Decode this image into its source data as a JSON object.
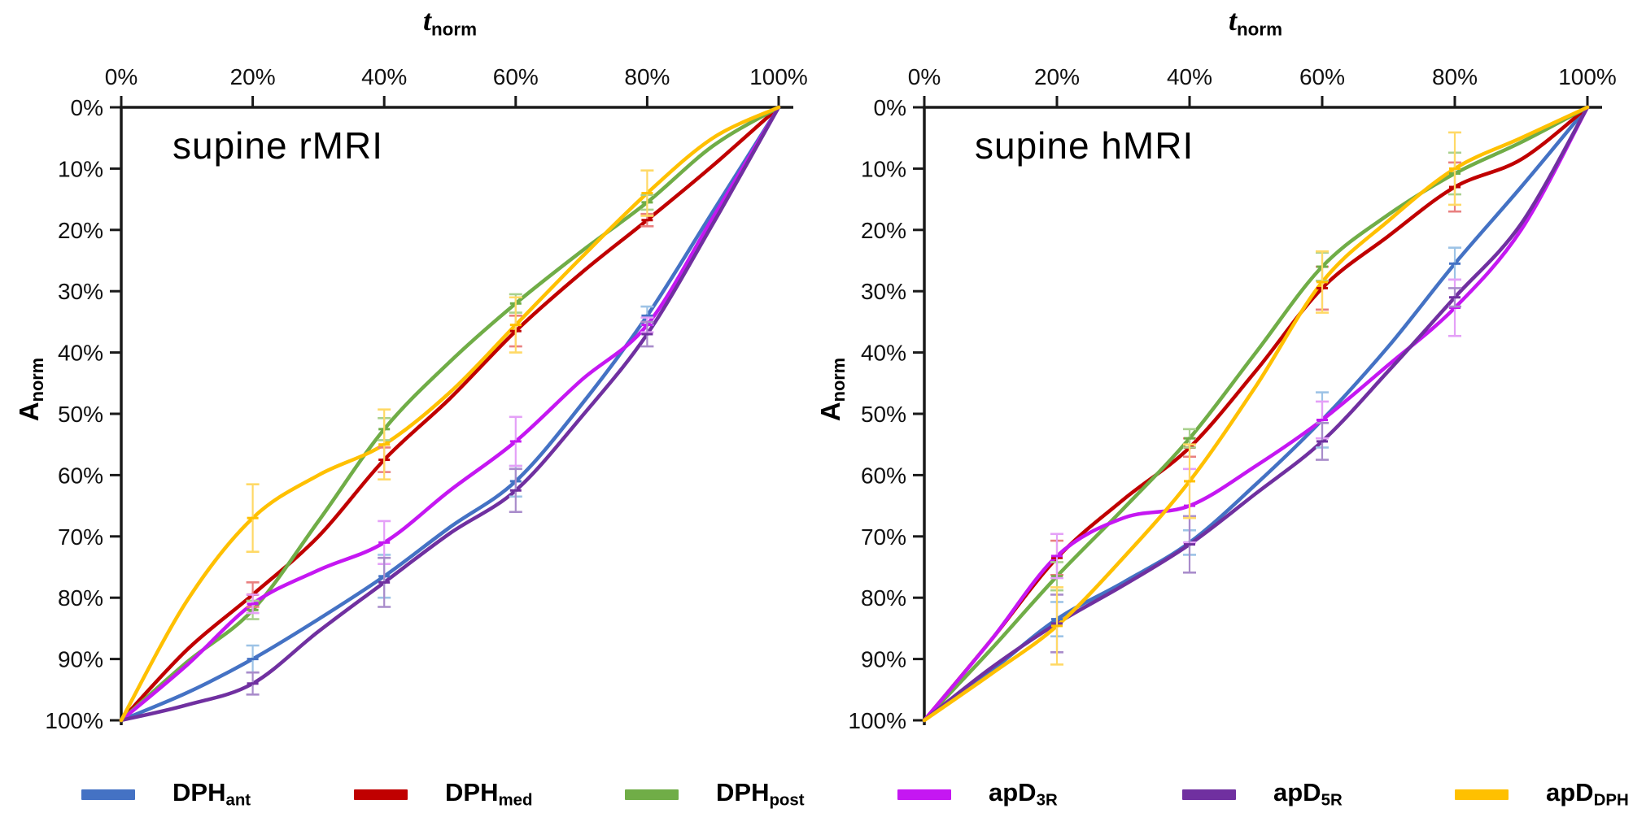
{
  "figure": {
    "legend": {
      "items": [
        {
          "name": "dph-ant",
          "main": "DPH",
          "sub": "ant",
          "color": "#4472C4"
        },
        {
          "name": "dph-med",
          "main": "DPH",
          "sub": "med",
          "color": "#C00000"
        },
        {
          "name": "dph-post",
          "main": "DPH",
          "sub": "post",
          "color": "#70AD47"
        },
        {
          "name": "apd-3r",
          "main": "apD",
          "sub": "3R",
          "color": "#C517F2"
        },
        {
          "name": "apd-5r",
          "main": "apD",
          "sub": "5R",
          "color": "#7030A0"
        },
        {
          "name": "apd-dph",
          "main": "apD",
          "sub": "DPH",
          "color": "#FFC000"
        }
      ]
    },
    "chart_data": [
      {
        "type": "line",
        "title": "supine rMRI",
        "xlabel": {
          "main": "t",
          "sub": "norm"
        },
        "ylabel": {
          "main": "A",
          "sub": "norm"
        },
        "x_ticks": [
          "0%",
          "20%",
          "40%",
          "60%",
          "80%",
          "100%"
        ],
        "y_ticks": [
          "0%",
          "10%",
          "20%",
          "30%",
          "40%",
          "50%",
          "60%",
          "70%",
          "80%",
          "90%",
          "100%"
        ],
        "x": [
          0,
          10,
          20,
          30,
          40,
          50,
          60,
          70,
          80,
          90,
          100
        ],
        "xlim": [
          0,
          100
        ],
        "ylim_top_to_bottom": [
          0,
          100
        ],
        "y_axis_inverted": true,
        "grid": false,
        "series": [
          {
            "name_main": "DPH",
            "name_sub": "ant",
            "color": "#4472C4",
            "err_color": "#9DC3E6",
            "values": [
              100,
              95.5,
              90,
              83.5,
              76.5,
              68.5,
              61,
              48.5,
              34,
              17,
              0
            ],
            "error_t": [
              20,
              40,
              60,
              80
            ],
            "error": [
              2.2,
              3.5,
              2.5,
              1.5
            ]
          },
          {
            "name_main": "DPH",
            "name_sub": "med",
            "color": "#C00000",
            "err_color": "#E98080",
            "values": [
              100,
              88.5,
              79.5,
              70,
              57.5,
              47.5,
              36.5,
              27,
              18.4,
              9.5,
              0
            ],
            "error_t": [
              20,
              40,
              60,
              80
            ],
            "error": [
              2.0,
              2.0,
              2.5,
              1.0
            ]
          },
          {
            "name_main": "DPH",
            "name_sub": "post",
            "color": "#70AD47",
            "err_color": "#A9D18E",
            "values": [
              100,
              90.5,
              82,
              67.5,
              52.5,
              41.5,
              32,
              23.5,
              15.5,
              6.3,
              0
            ],
            "error_t": [
              20,
              40,
              60,
              80
            ],
            "error": [
              1.5,
              1.8,
              1.5,
              1.2
            ]
          },
          {
            "name_main": "apD",
            "name_sub": "3R",
            "color": "#C517F2",
            "err_color": "#E4A0F7",
            "values": [
              100,
              91,
              81,
              75.5,
              71,
              62.5,
              54.5,
              44.5,
              35.5,
              18,
              0
            ],
            "error_t": [
              20,
              40,
              60,
              80
            ],
            "error": [
              1.5,
              3.5,
              4.0,
              1.2
            ]
          },
          {
            "name_main": "apD",
            "name_sub": "5R",
            "color": "#7030A0",
            "err_color": "#A98CCB",
            "values": [
              100,
              97.5,
              94,
              85.5,
              77.5,
              69.5,
              62.5,
              50.5,
              37,
              19,
              0
            ],
            "error_t": [
              20,
              40,
              60,
              80
            ],
            "error": [
              1.8,
              4.0,
              3.5,
              2.0
            ]
          },
          {
            "name_main": "apD",
            "name_sub": "DPH",
            "color": "#FFC000",
            "err_color": "#FFD966",
            "values": [
              100,
              80.5,
              67,
              60,
              55,
              46.5,
              35.5,
              24.5,
              14,
              5,
              0
            ],
            "error_t": [
              20,
              40,
              60,
              80
            ],
            "error": [
              5.5,
              5.7,
              4.5,
              3.7
            ]
          }
        ]
      },
      {
        "type": "line",
        "title": "supine hMRI",
        "xlabel": {
          "main": "t",
          "sub": "norm"
        },
        "ylabel": {
          "main": "A",
          "sub": "norm"
        },
        "x_ticks": [
          "0%",
          "20%",
          "40%",
          "60%",
          "80%",
          "100%"
        ],
        "y_ticks": [
          "0%",
          "10%",
          "20%",
          "30%",
          "40%",
          "50%",
          "60%",
          "70%",
          "80%",
          "90%",
          "100%"
        ],
        "x": [
          0,
          10,
          20,
          30,
          40,
          50,
          60,
          70,
          80,
          90,
          100
        ],
        "xlim": [
          0,
          100
        ],
        "ylim_top_to_bottom": [
          0,
          100
        ],
        "y_axis_inverted": true,
        "grid": false,
        "series": [
          {
            "name_main": "DPH",
            "name_sub": "ant",
            "color": "#4472C4",
            "err_color": "#9DC3E6",
            "values": [
              100,
              92,
              83.5,
              77.5,
              71,
              61.5,
              51,
              39,
              25.5,
              13,
              0
            ],
            "error_t": [
              20,
              40,
              60,
              80
            ],
            "error": [
              2.8,
              2.0,
              4.5,
              2.6
            ]
          },
          {
            "name_main": "DPH",
            "name_sub": "med",
            "color": "#C00000",
            "err_color": "#E98080",
            "values": [
              100,
              87,
              73.5,
              64,
              55.5,
              43,
              29.5,
              21,
              13,
              8.5,
              0
            ],
            "error_t": [
              20,
              40,
              60,
              80
            ],
            "error": [
              2.8,
              1.5,
              3.5,
              4.0
            ]
          },
          {
            "name_main": "DPH",
            "name_sub": "post",
            "color": "#70AD47",
            "err_color": "#A9D18E",
            "values": [
              100,
              88.5,
              76.5,
              65.5,
              54,
              40,
              26,
              17.5,
              10.8,
              5.7,
              0
            ],
            "error_t": [
              20,
              40,
              60,
              80
            ],
            "error": [
              2.3,
              1.5,
              2.3,
              3.4
            ]
          },
          {
            "name_main": "apD",
            "name_sub": "3R",
            "color": "#C517F2",
            "err_color": "#E4A0F7",
            "values": [
              100,
              87,
              73.2,
              67,
              65,
              58.5,
              51,
              42,
              32.7,
              20,
              0
            ],
            "error_t": [
              20,
              40,
              60,
              80
            ],
            "error": [
              3.6,
              6.0,
              3.0,
              4.6
            ]
          },
          {
            "name_main": "apD",
            "name_sub": "5R",
            "color": "#7030A0",
            "err_color": "#A98CCB",
            "values": [
              100,
              91.5,
              84.2,
              78,
              71.3,
              63,
              54.5,
              43,
              31,
              19,
              0
            ],
            "error_t": [
              20,
              40,
              60,
              80
            ],
            "error": [
              4.7,
              4.6,
              3.0,
              1.5
            ]
          },
          {
            "name_main": "apD",
            "name_sub": "DPH",
            "color": "#FFC000",
            "err_color": "#FFD966",
            "values": [
              100,
              92.5,
              84.6,
              73.5,
              61,
              45.5,
              28.5,
              18.5,
              10,
              5,
              0
            ],
            "error_t": [
              20,
              40,
              60,
              80
            ],
            "error": [
              6.3,
              6.0,
              5.0,
              5.9
            ]
          }
        ]
      }
    ]
  }
}
